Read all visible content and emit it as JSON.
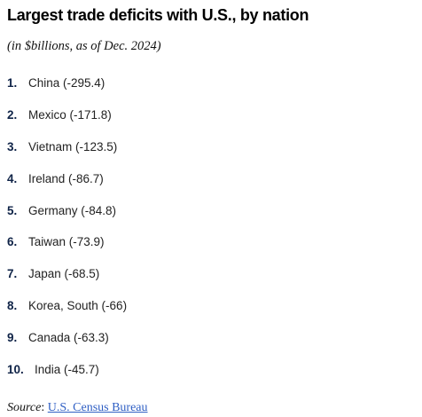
{
  "title": "Largest trade deficits with U.S., by nation",
  "subtitle": "(in $billions, as of Dec. 2024)",
  "items": [
    {
      "rank": "1.",
      "label": "China (-295.4)"
    },
    {
      "rank": "2.",
      "label": "Mexico (-171.8)"
    },
    {
      "rank": "3.",
      "label": "Vietnam (-123.5)"
    },
    {
      "rank": "4.",
      "label": "Ireland (-86.7)"
    },
    {
      "rank": "5.",
      "label": "Germany (-84.8)"
    },
    {
      "rank": "6.",
      "label": "Taiwan (-73.9)"
    },
    {
      "rank": "7.",
      "label": "Japan (-68.5)"
    },
    {
      "rank": "8.",
      "label": "Korea, South (-66)"
    },
    {
      "rank": "9.",
      "label": "Canada (-63.3)"
    },
    {
      "rank": "10.",
      "label": "India (-45.7)"
    }
  ],
  "source": {
    "label": "Source",
    "separator": ":",
    "link_text": "U.S. Census Bureau"
  },
  "colors": {
    "rank_number": "#0f2347",
    "link": "#2f5fc4"
  }
}
